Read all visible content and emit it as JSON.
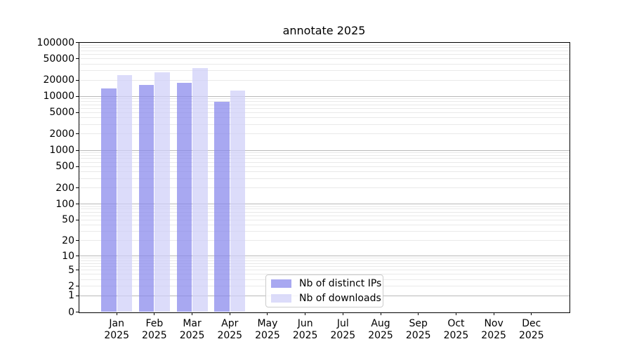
{
  "title": "annotate 2025",
  "chart_data": {
    "type": "bar",
    "title": "annotate 2025",
    "categories": [
      "Jan",
      "Feb",
      "Mar",
      "Apr",
      "May",
      "Jun",
      "Jul",
      "Aug",
      "Sep",
      "Oct",
      "Nov",
      "Dec"
    ],
    "year": "2025",
    "series": [
      {
        "name": "Nb of distinct IPs",
        "color": "rgba(134,134,236,0.72)",
        "values": [
          14200,
          16400,
          18000,
          7900,
          null,
          null,
          null,
          null,
          null,
          null,
          null,
          null
        ]
      },
      {
        "name": "Nb of downloads",
        "color": "rgba(207,207,248,0.72)",
        "values": [
          24600,
          27700,
          33200,
          13000,
          null,
          null,
          null,
          null,
          null,
          null,
          null,
          null
        ]
      }
    ],
    "yscale": "log1p",
    "ylim": [
      0,
      100000
    ],
    "yticks": [
      100000,
      50000,
      20000,
      10000,
      5000,
      2000,
      1000,
      500,
      200,
      100,
      50,
      20,
      10,
      5,
      2,
      1,
      0
    ],
    "grid": {
      "on": true,
      "major_color": "#b9b9b9",
      "minor_color": "#e9e9e9"
    },
    "legend": {
      "position": "lower-center",
      "border_color": "#cccccc"
    },
    "xlabel": "",
    "ylabel": ""
  }
}
